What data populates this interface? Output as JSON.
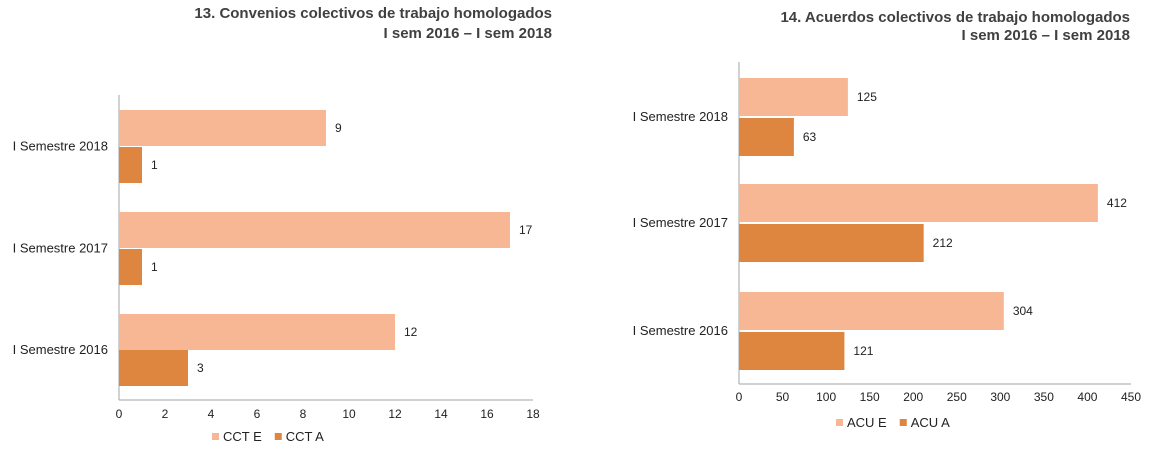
{
  "chart_data": [
    {
      "type": "bar",
      "orientation": "horizontal",
      "title": "13. Convenios colectivos de trabajo homologados",
      "subtitle": "I sem 2016 – I sem 2018",
      "categories": [
        "I Semestre 2018",
        "I Semestre 2017",
        "I Semestre 2016"
      ],
      "series": [
        {
          "name": "CCT E",
          "values": [
            9,
            17,
            12
          ],
          "color": "#F8B794"
        },
        {
          "name": "CCT A",
          "values": [
            1,
            1,
            3
          ],
          "color": "#DE853F"
        }
      ],
      "xlim": [
        0,
        18
      ],
      "xticks": [
        0,
        2,
        4,
        6,
        8,
        10,
        12,
        14,
        16,
        18
      ],
      "grid": false,
      "legend": "bottom"
    },
    {
      "type": "bar",
      "orientation": "horizontal",
      "title": "14. Acuerdos colectivos de trabajo homologados",
      "subtitle": "I sem 2016 – I sem 2018",
      "categories": [
        "I Semestre 2018",
        "I Semestre 2017",
        "I Semestre 2016"
      ],
      "series": [
        {
          "name": "ACU E",
          "values": [
            125,
            412,
            304
          ],
          "color": "#F8B794"
        },
        {
          "name": "ACU A",
          "values": [
            63,
            212,
            121
          ],
          "color": "#DE853F"
        }
      ],
      "xlim": [
        0,
        450
      ],
      "xticks": [
        0,
        50,
        100,
        150,
        200,
        250,
        300,
        350,
        400,
        450
      ],
      "grid": false,
      "legend": "bottom"
    }
  ]
}
